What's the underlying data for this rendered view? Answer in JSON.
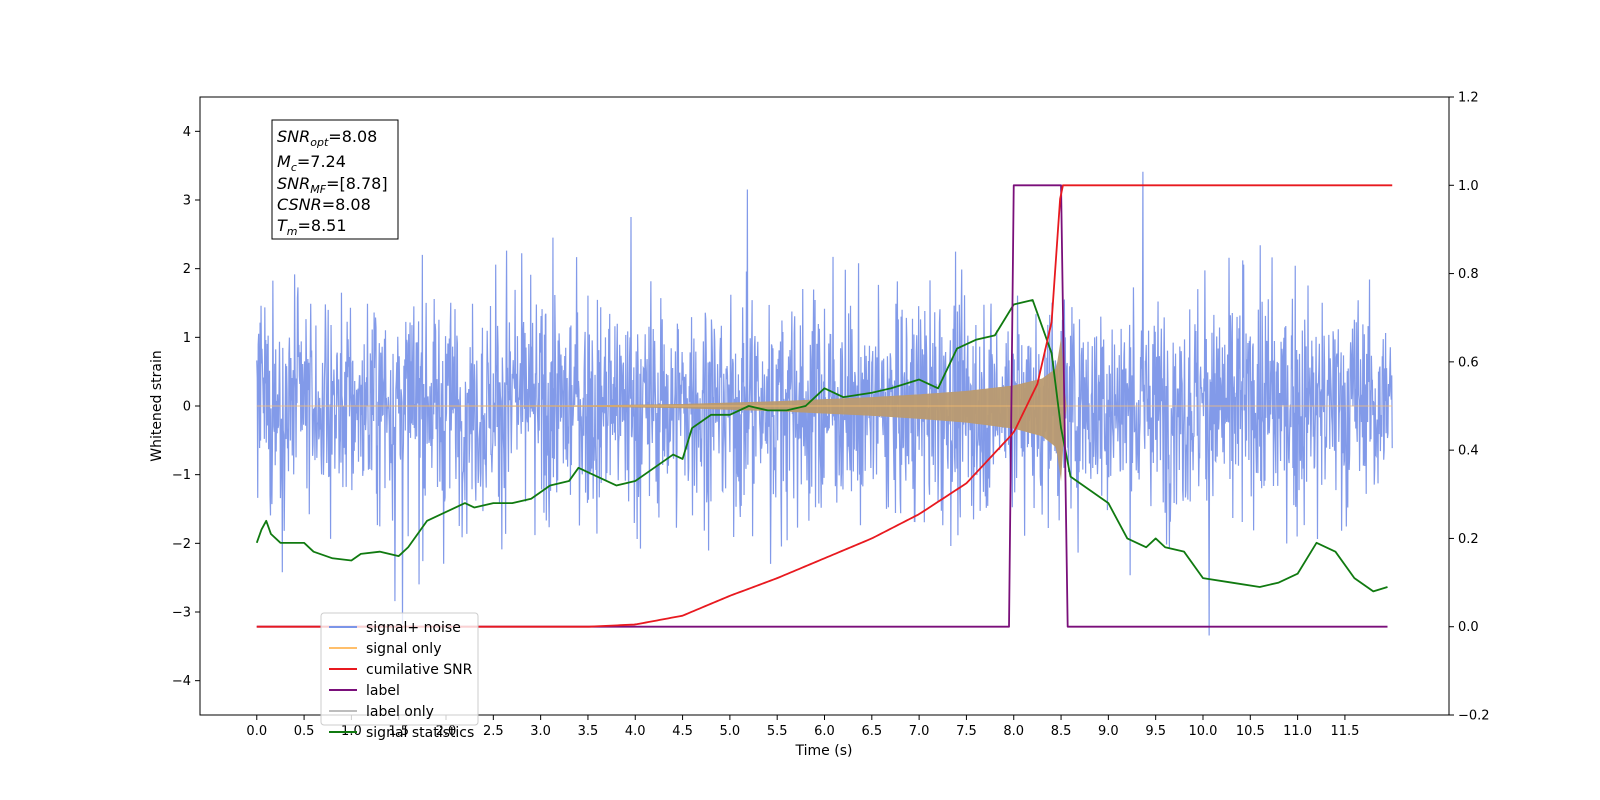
{
  "chart_data": {
    "type": "line",
    "xlabel": "Time (s)",
    "ylabel": "Whitened strain",
    "xlim": [
      -0.6,
      12.6
    ],
    "ylim": [
      -4.5,
      4.5
    ],
    "y2lim": [
      -0.2,
      1.2
    ],
    "x_ticks": [
      "0.0",
      "0.5",
      "1.0",
      "1.5",
      "2.0",
      "2.5",
      "3.0",
      "3.5",
      "4.0",
      "4.5",
      "5.0",
      "5.5",
      "6.0",
      "6.5",
      "7.0",
      "7.5",
      "8.0",
      "8.5",
      "9.0",
      "9.5",
      "10.0",
      "10.5",
      "11.0",
      "11.5"
    ],
    "y_ticks": [
      "−4",
      "−3",
      "−2",
      "−1",
      "0",
      "1",
      "2",
      "3",
      "4"
    ],
    "y2_ticks": [
      "−0.2",
      "0.0",
      "0.2",
      "0.4",
      "0.6",
      "0.8",
      "1.0",
      "1.2"
    ],
    "grid": false,
    "legend_placement": "lower-left",
    "legend": [
      {
        "label": "signal+ noise",
        "color": "#7b95e8"
      },
      {
        "label": "signal only",
        "color": "#ffbf6b"
      },
      {
        "label": "cumilative SNR",
        "color": "#e8191f"
      },
      {
        "label": "label",
        "color": "#7a0f7a"
      },
      {
        "label": "label only",
        "color": "#bdbdbd"
      },
      {
        "label": "signal statistics",
        "color": "#107a10"
      }
    ],
    "annotation": {
      "SNR_opt": "8.08",
      "M_c": "7.24",
      "SNR_MF": "[8.78]",
      "CSNR": "8.08",
      "T_m": "8.51"
    },
    "series": [
      {
        "name": "signal+ noise",
        "axis": "left",
        "description_free": true,
        "x_range": [
          0.0,
          12.0
        ],
        "envelope_approx": [
          -3.3,
          3.3
        ]
      },
      {
        "name": "signal only",
        "axis": "left",
        "x_range": [
          0.0,
          12.0
        ],
        "amplitude_points": {
          "x": [
            0.0,
            3.5,
            4.5,
            5.0,
            5.5,
            6.0,
            6.5,
            7.0,
            7.5,
            8.0,
            8.3,
            8.45,
            8.5,
            8.55,
            12.0
          ],
          "y": [
            0.0,
            0.01,
            0.03,
            0.05,
            0.07,
            0.1,
            0.13,
            0.17,
            0.22,
            0.3,
            0.4,
            0.55,
            1.0,
            0.0,
            0.0
          ]
        }
      },
      {
        "name": "cumilative SNR",
        "axis": "right",
        "x": [
          0.0,
          3.5,
          4.0,
          4.5,
          5.0,
          5.5,
          6.0,
          6.5,
          7.0,
          7.5,
          8.0,
          8.25,
          8.4,
          8.5,
          12.0
        ],
        "y": [
          0.0,
          0.0,
          0.005,
          0.025,
          0.07,
          0.11,
          0.155,
          0.2,
          0.255,
          0.325,
          0.44,
          0.55,
          0.69,
          1.0,
          1.0
        ]
      },
      {
        "name": "label",
        "axis": "right",
        "x": [
          0.0,
          7.95,
          8.0,
          8.5,
          8.57,
          11.95
        ],
        "y": [
          0.0,
          0.0,
          1.0,
          1.0,
          0.0,
          0.0
        ]
      },
      {
        "name": "signal statistics",
        "axis": "right",
        "x": [
          0.0,
          0.05,
          0.1,
          0.15,
          0.25,
          0.3,
          0.5,
          0.6,
          0.8,
          1.0,
          1.1,
          1.3,
          1.5,
          1.6,
          1.8,
          2.0,
          2.2,
          2.3,
          2.5,
          2.7,
          2.9,
          3.1,
          3.3,
          3.4,
          3.6,
          3.8,
          4.0,
          4.2,
          4.4,
          4.5,
          4.6,
          4.8,
          5.0,
          5.2,
          5.4,
          5.6,
          5.8,
          6.0,
          6.2,
          6.5,
          6.7,
          7.0,
          7.2,
          7.4,
          7.6,
          7.8,
          8.0,
          8.2,
          8.3,
          8.4,
          8.5,
          8.6,
          8.8,
          9.0,
          9.2,
          9.4,
          9.5,
          9.6,
          9.8,
          10.0,
          10.3,
          10.6,
          10.8,
          11.0,
          11.2,
          11.4,
          11.6,
          11.8,
          11.95
        ],
        "y": [
          0.19,
          0.22,
          0.24,
          0.21,
          0.19,
          0.19,
          0.19,
          0.17,
          0.155,
          0.15,
          0.165,
          0.17,
          0.16,
          0.18,
          0.24,
          0.26,
          0.28,
          0.27,
          0.28,
          0.28,
          0.29,
          0.32,
          0.33,
          0.36,
          0.34,
          0.32,
          0.33,
          0.36,
          0.39,
          0.38,
          0.45,
          0.48,
          0.48,
          0.5,
          0.49,
          0.49,
          0.5,
          0.54,
          0.52,
          0.53,
          0.54,
          0.56,
          0.54,
          0.63,
          0.65,
          0.66,
          0.73,
          0.74,
          0.68,
          0.62,
          0.45,
          0.34,
          0.31,
          0.28,
          0.2,
          0.18,
          0.2,
          0.18,
          0.17,
          0.11,
          0.1,
          0.09,
          0.1,
          0.12,
          0.19,
          0.17,
          0.11,
          0.08,
          0.09
        ]
      }
    ]
  }
}
